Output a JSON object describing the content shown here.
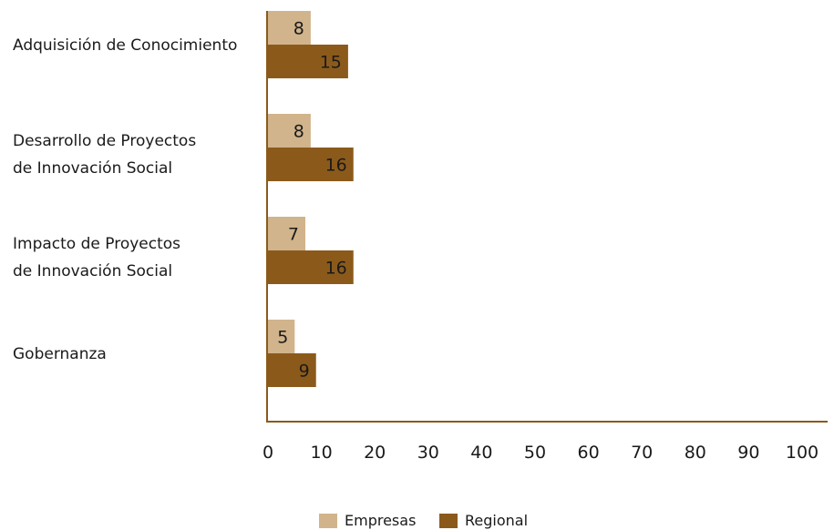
{
  "chart_data": {
    "type": "bar",
    "orientation": "horizontal",
    "categories": [
      [
        "Adquisición de Conocimiento"
      ],
      [
        "Desarrollo de Proyectos",
        "de Innovación Social"
      ],
      [
        "Impacto de Proyectos",
        "de Innovación Social"
      ],
      [
        "Gobernanza"
      ]
    ],
    "series": [
      {
        "name": "Empresas",
        "color": "#d1b48c",
        "values": [
          8,
          8,
          7,
          5
        ]
      },
      {
        "name": "Regional",
        "color": "#8b5a1b",
        "values": [
          15,
          16,
          16,
          9
        ]
      }
    ],
    "xlim": [
      0,
      100
    ],
    "xticks": [
      0,
      10,
      20,
      30,
      40,
      50,
      60,
      70,
      80,
      90,
      100
    ],
    "axis_color": "#8b5a1b",
    "grid": false,
    "legend_position": "bottom-center",
    "title": "",
    "xlabel": "",
    "ylabel": ""
  }
}
